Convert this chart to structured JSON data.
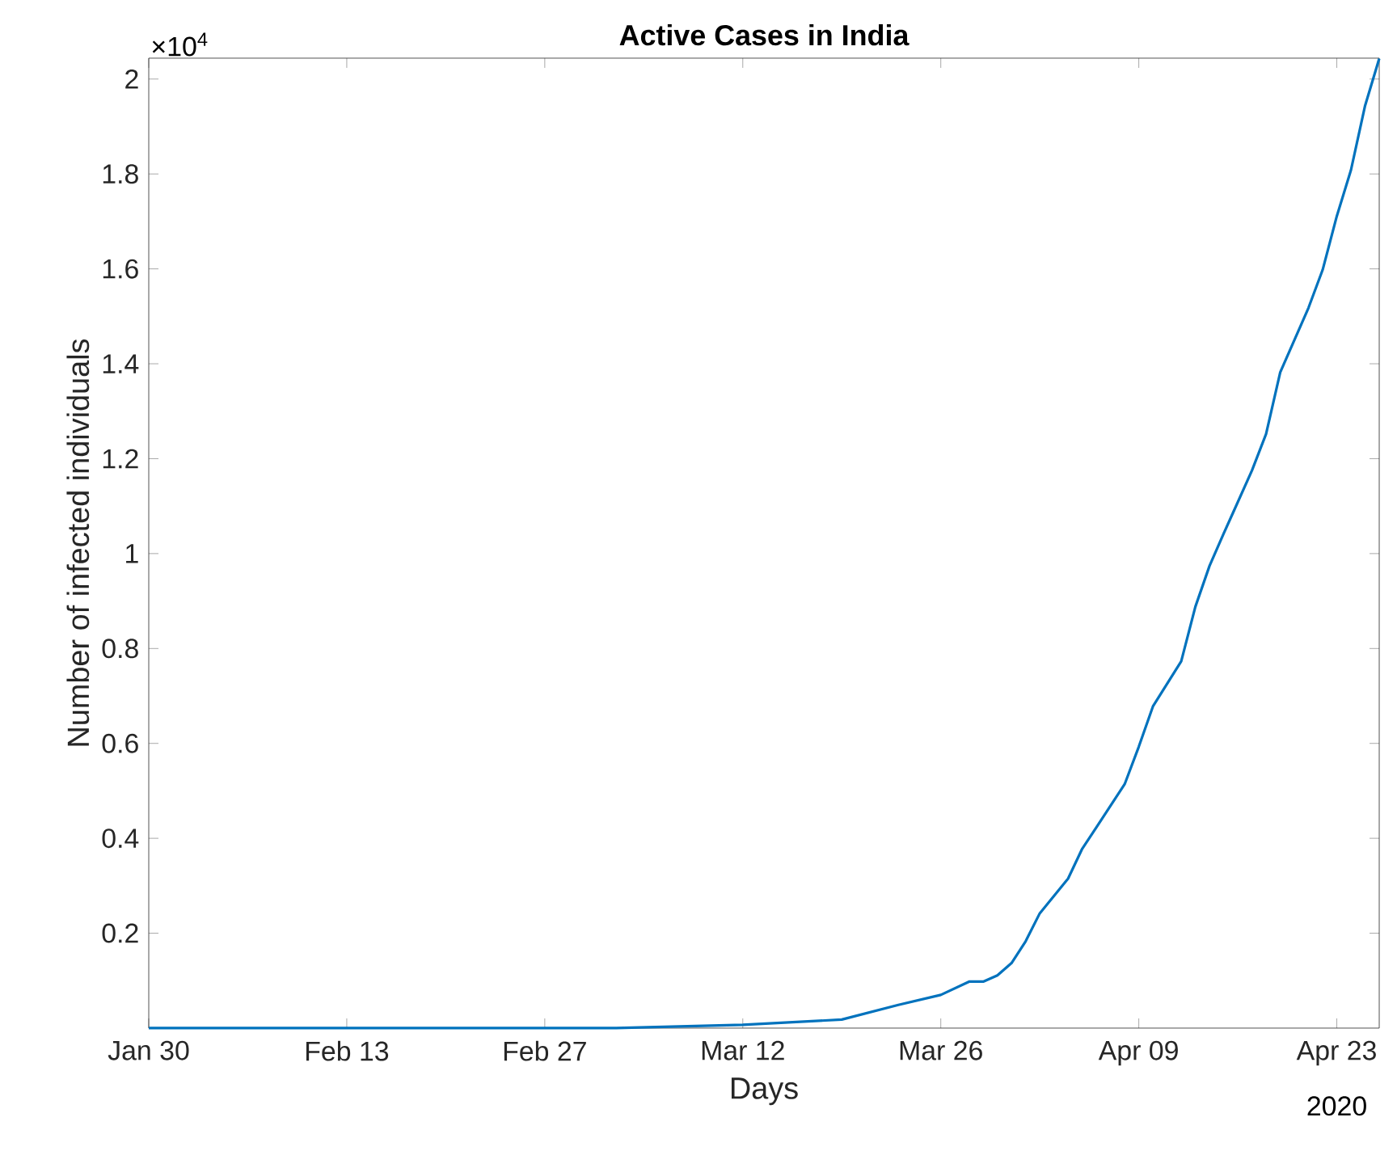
{
  "chart_data": {
    "type": "line",
    "title": "Active Cases in India",
    "xlabel": "Days",
    "ylabel": "Number of infected individuals",
    "annotations": [
      "×10$^{4}$",
      "2020"
    ],
    "x": [
      "2020-01-30",
      "2020-03-03",
      "2020-03-12",
      "2020-03-19",
      "2020-03-23",
      "2020-03-26",
      "2020-03-28",
      "2020-03-29",
      "2020-03-30",
      "2020-03-31",
      "2020-04-01",
      "2020-04-02",
      "2020-04-04",
      "2020-04-05",
      "2020-04-06",
      "2020-04-08",
      "2020-04-09",
      "2020-04-10",
      "2020-04-12",
      "2020-04-13",
      "2020-04-14",
      "2020-04-15",
      "2020-04-17",
      "2020-04-18",
      "2020-04-19",
      "2020-04-21",
      "2020-04-22",
      "2020-04-23",
      "2020-04-24",
      "2020-04-25",
      "2020-04-26"
    ],
    "series": [
      {
        "color": "#0072bd",
        "values": [
          0,
          0,
          0.007,
          0.018,
          0.049,
          0.07,
          0.098,
          0.098,
          0.111,
          0.137,
          0.183,
          0.242,
          0.315,
          0.378,
          0.423,
          0.514,
          0.593,
          0.678,
          0.773,
          0.888,
          0.974,
          1.042,
          1.175,
          1.252,
          1.382,
          1.518,
          1.598,
          1.711,
          1.808,
          1.944,
          2.043
        ]
      }
    ],
    "xlim": [
      "2020-01-30",
      "2020-04-26"
    ],
    "ylim": [
      0,
      2.044
    ],
    "xticks": [
      {
        "value": "2020-01-30",
        "label": "Jan 30"
      },
      {
        "value": "2020-02-13",
        "label": "Feb 13"
      },
      {
        "value": "2020-02-27",
        "label": "Feb 27"
      },
      {
        "value": "2020-03-12",
        "label": "Mar 12"
      },
      {
        "value": "2020-03-26",
        "label": "Mar 26"
      },
      {
        "value": "2020-04-09",
        "label": "Apr 09"
      },
      {
        "value": "2020-04-23",
        "label": "Apr 23"
      }
    ],
    "yticks": [
      0.2,
      0.4,
      0.6,
      0.8,
      1,
      1.2,
      1.4,
      1.6,
      1.8,
      2
    ],
    "grid": false,
    "marker": "none",
    "line_style": "solid"
  }
}
